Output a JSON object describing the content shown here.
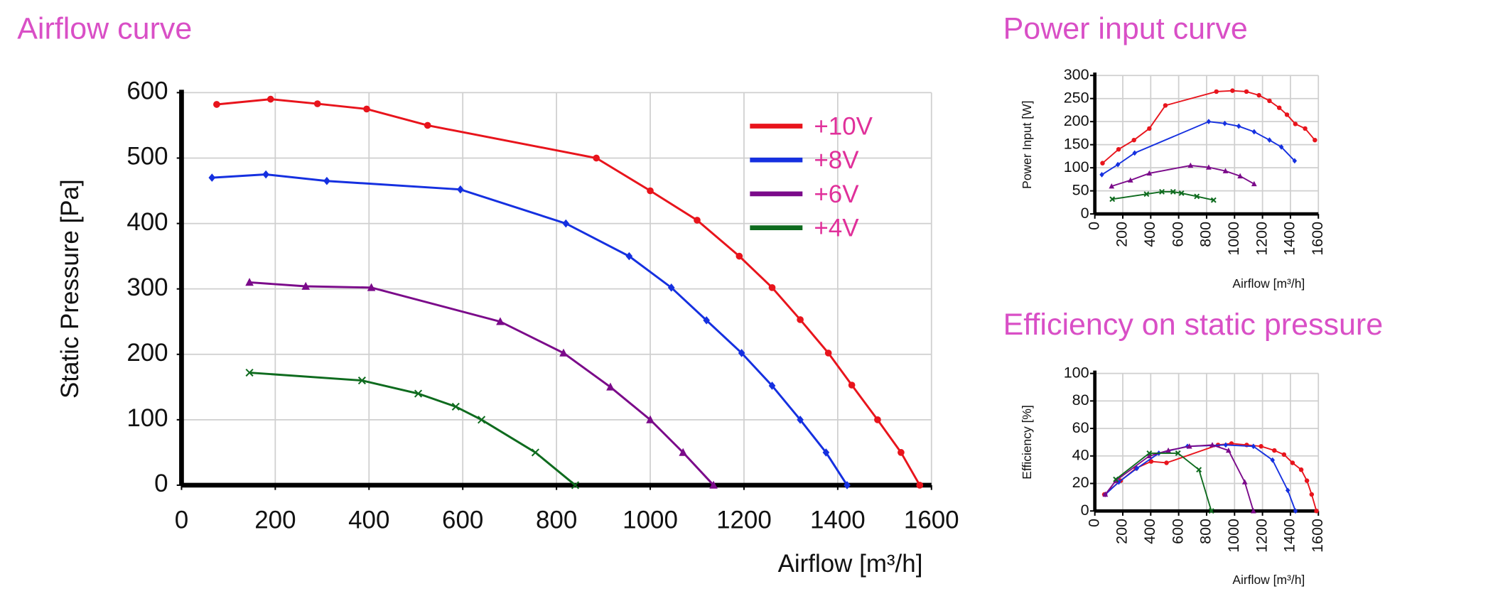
{
  "chart_data": [
    {
      "type": "line",
      "title": "Airflow curve",
      "x_label": "Airflow [m³/h]",
      "y_label": "Static Pressure [Pa]",
      "xlim": [
        0,
        1600
      ],
      "xticks": [
        0,
        200,
        400,
        600,
        800,
        1000,
        1200,
        1400,
        1600
      ],
      "ylim": [
        0,
        600
      ],
      "yticks": [
        0,
        100,
        200,
        300,
        400,
        500,
        600
      ],
      "grid": true,
      "legend": "upper right",
      "series": [
        {
          "name": "+10V",
          "color": "#e8141c",
          "marker": "circle",
          "x": [
            75,
            190,
            290,
            395,
            525,
            885,
            1000,
            1100,
            1190,
            1260,
            1320,
            1380,
            1430,
            1485,
            1535,
            1575
          ],
          "values": [
            582,
            590,
            583,
            575,
            550,
            500,
            450,
            405,
            350,
            302,
            253,
            202,
            153,
            100,
            50,
            0
          ]
        },
        {
          "name": "+8V",
          "color": "#1530e0",
          "marker": "diamond",
          "x": [
            65,
            180,
            310,
            595,
            820,
            955,
            1045,
            1120,
            1195,
            1260,
            1320,
            1375,
            1420
          ],
          "values": [
            470,
            475,
            465,
            452,
            400,
            350,
            302,
            252,
            202,
            152,
            100,
            50,
            0
          ]
        },
        {
          "name": "+6V",
          "color": "#7b0a8a",
          "marker": "triangle",
          "x": [
            145,
            265,
            405,
            680,
            815,
            915,
            1000,
            1070,
            1135
          ],
          "values": [
            310,
            304,
            302,
            250,
            202,
            150,
            100,
            50,
            0
          ]
        },
        {
          "name": "+4V",
          "color": "#0e6b1e",
          "marker": "x",
          "x": [
            145,
            385,
            505,
            585,
            640,
            755,
            840
          ],
          "values": [
            172,
            160,
            140,
            120,
            100,
            50,
            0
          ]
        }
      ]
    },
    {
      "type": "line",
      "title": "Power input curve",
      "x_label": "Airflow  [m³/h]",
      "y_label": "Power Input [W]",
      "xlim": [
        0,
        1600
      ],
      "xticks": [
        0,
        200,
        400,
        600,
        800,
        1000,
        1200,
        1400,
        1600
      ],
      "ylim": [
        0,
        300
      ],
      "yticks": [
        0,
        50,
        100,
        150,
        200,
        250,
        300
      ],
      "grid": true,
      "series": [
        {
          "color": "#e8141c",
          "marker": "circle",
          "x": [
            55,
            170,
            280,
            390,
            505,
            870,
            985,
            1085,
            1175,
            1250,
            1320,
            1375,
            1435,
            1505,
            1575
          ],
          "values": [
            110,
            140,
            160,
            185,
            235,
            265,
            267,
            265,
            257,
            245,
            230,
            215,
            195,
            185,
            160
          ]
        },
        {
          "color": "#1530e0",
          "marker": "diamond",
          "x": [
            50,
            165,
            285,
            815,
            930,
            1030,
            1140,
            1250,
            1335,
            1430
          ],
          "values": [
            85,
            107,
            132,
            200,
            196,
            190,
            178,
            160,
            145,
            115
          ]
        },
        {
          "color": "#7b0a8a",
          "marker": "triangle",
          "x": [
            120,
            255,
            390,
            685,
            815,
            935,
            1040,
            1140
          ],
          "values": [
            60,
            73,
            88,
            105,
            101,
            93,
            82,
            65
          ]
        },
        {
          "color": "#0e6b1e",
          "marker": "x",
          "x": [
            125,
            370,
            480,
            560,
            620,
            730,
            850
          ],
          "values": [
            32,
            43,
            48,
            48,
            45,
            38,
            30
          ]
        }
      ]
    },
    {
      "type": "line",
      "title": "Efficiency on static pressure",
      "x_label": "Airflow  [m³/h]",
      "y_label": "Efficiency [%]",
      "xlim": [
        0,
        1600
      ],
      "xticks": [
        0,
        200,
        400,
        600,
        800,
        1000,
        1200,
        1400,
        1600
      ],
      "ylim": [
        0,
        100
      ],
      "yticks": [
        0,
        20,
        40,
        60,
        80,
        100
      ],
      "grid": true,
      "series": [
        {
          "color": "#e8141c",
          "marker": "circle",
          "x": [
            68,
            185,
            294,
            403,
            513,
            882,
            978,
            1087,
            1190,
            1285,
            1354,
            1415,
            1477,
            1518,
            1552,
            1586
          ],
          "values": [
            12,
            22,
            31,
            36,
            35,
            48,
            49,
            48,
            47,
            44,
            41,
            35,
            30,
            22,
            12,
            0
          ]
        },
        {
          "color": "#1530e0",
          "marker": "diamond",
          "x": [
            75,
            171,
            301,
            458,
            663,
            937,
            1135,
            1272,
            1381,
            1436
          ],
          "values": [
            12,
            21,
            31,
            42,
            47,
            48,
            47,
            37,
            15,
            0
          ]
        },
        {
          "color": "#7b0a8a",
          "marker": "triangle",
          "x": [
            75,
            150,
            390,
            526,
            677,
            841,
            957,
            1073,
            1135
          ],
          "values": [
            12,
            22,
            40,
            44,
            47,
            48,
            44,
            21,
            0
          ]
        },
        {
          "color": "#0e6b1e",
          "marker": "x",
          "x": [
            150,
            390,
            595,
            745,
            834
          ],
          "values": [
            23,
            42,
            42,
            30,
            0
          ]
        }
      ]
    }
  ]
}
